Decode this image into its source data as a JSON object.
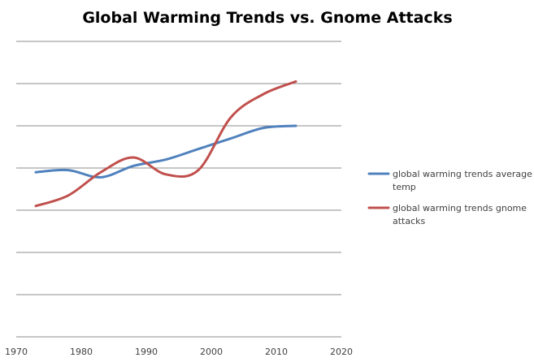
{
  "chart_data": {
    "type": "line",
    "title": "Global Warming Trends vs. Gnome Attacks",
    "xlabel": "",
    "ylabel": "",
    "xlim": [
      1970,
      2020
    ],
    "ylim": [
      0,
      7
    ],
    "x_ticks": [
      "1970",
      "1980",
      "1990",
      "2000",
      "2010",
      "2020"
    ],
    "grid": true,
    "legend_position": "right",
    "series": [
      {
        "name": "global warming trends average temp",
        "color": "#4F81BD",
        "points": [
          {
            "x": 1973,
            "y": 3.9
          },
          {
            "x": 1978,
            "y": 3.95
          },
          {
            "x": 1983,
            "y": 3.78
          },
          {
            "x": 1988,
            "y": 4.05
          },
          {
            "x": 1993,
            "y": 4.2
          },
          {
            "x": 1998,
            "y": 4.45
          },
          {
            "x": 2003,
            "y": 4.7
          },
          {
            "x": 2008,
            "y": 4.95
          },
          {
            "x": 2013,
            "y": 5.0
          }
        ]
      },
      {
        "name": "global warming trends gnome attacks",
        "color": "#C0504D",
        "points": [
          {
            "x": 1973,
            "y": 3.1
          },
          {
            "x": 1978,
            "y": 3.35
          },
          {
            "x": 1983,
            "y": 3.9
          },
          {
            "x": 1988,
            "y": 4.25
          },
          {
            "x": 1993,
            "y": 3.85
          },
          {
            "x": 1998,
            "y": 3.95
          },
          {
            "x": 2003,
            "y": 5.2
          },
          {
            "x": 2008,
            "y": 5.75
          },
          {
            "x": 2013,
            "y": 6.05
          }
        ]
      }
    ]
  }
}
